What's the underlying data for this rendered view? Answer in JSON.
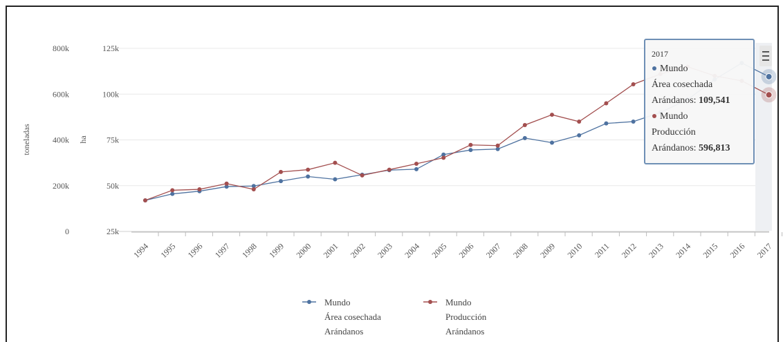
{
  "chart_data": {
    "type": "line",
    "categories": [
      "1994",
      "1995",
      "1996",
      "1997",
      "1998",
      "1999",
      "2000",
      "2001",
      "2002",
      "2003",
      "2004",
      "2005",
      "2006",
      "2007",
      "2008",
      "2009",
      "2010",
      "2011",
      "2012",
      "2013",
      "2014",
      "2015",
      "2016",
      "2017"
    ],
    "y_axes": [
      {
        "title": "toneladas",
        "ticks": [
          "0",
          "200k",
          "400k",
          "600k",
          "800k"
        ],
        "range": [
          0,
          800000
        ]
      },
      {
        "title": "ha",
        "ticks": [
          "25k",
          "50k",
          "75k",
          "100k",
          "125k"
        ],
        "range": [
          25000,
          125000
        ]
      }
    ],
    "series": [
      {
        "name": [
          "Mundo",
          "Área cosechada",
          "Arándanos"
        ],
        "axis": 1,
        "color": "#4e72a0",
        "values": [
          42000,
          45500,
          47000,
          49500,
          49800,
          52500,
          55000,
          53500,
          56000,
          58500,
          59000,
          67000,
          69500,
          70000,
          76000,
          73500,
          77500,
          84000,
          85000,
          90000,
          97000,
          108000,
          117000,
          109541
        ]
      },
      {
        "name": [
          "Mundo",
          "Producción",
          "Arándanos"
        ],
        "axis": 0,
        "color": "#a34f4f",
        "values": [
          136000,
          180000,
          184000,
          209000,
          184000,
          260000,
          270000,
          300000,
          245000,
          270000,
          296000,
          322000,
          378000,
          375000,
          465000,
          510000,
          480000,
          560000,
          643000,
          688000,
          720000,
          680000,
          658000,
          596813
        ]
      }
    ],
    "grid": true,
    "legend_position": "bottom-center",
    "tooltip": {
      "header": "2017",
      "rows": [
        {
          "color": "#4e72a0",
          "lines": [
            "Mundo",
            "Área cosechada"
          ],
          "label": "Arándanos: ",
          "value": "109,541"
        },
        {
          "color": "#a34f4f",
          "lines": [
            "Mundo",
            "Producción"
          ],
          "label": "Arándanos: ",
          "value": "596,813"
        }
      ]
    }
  }
}
